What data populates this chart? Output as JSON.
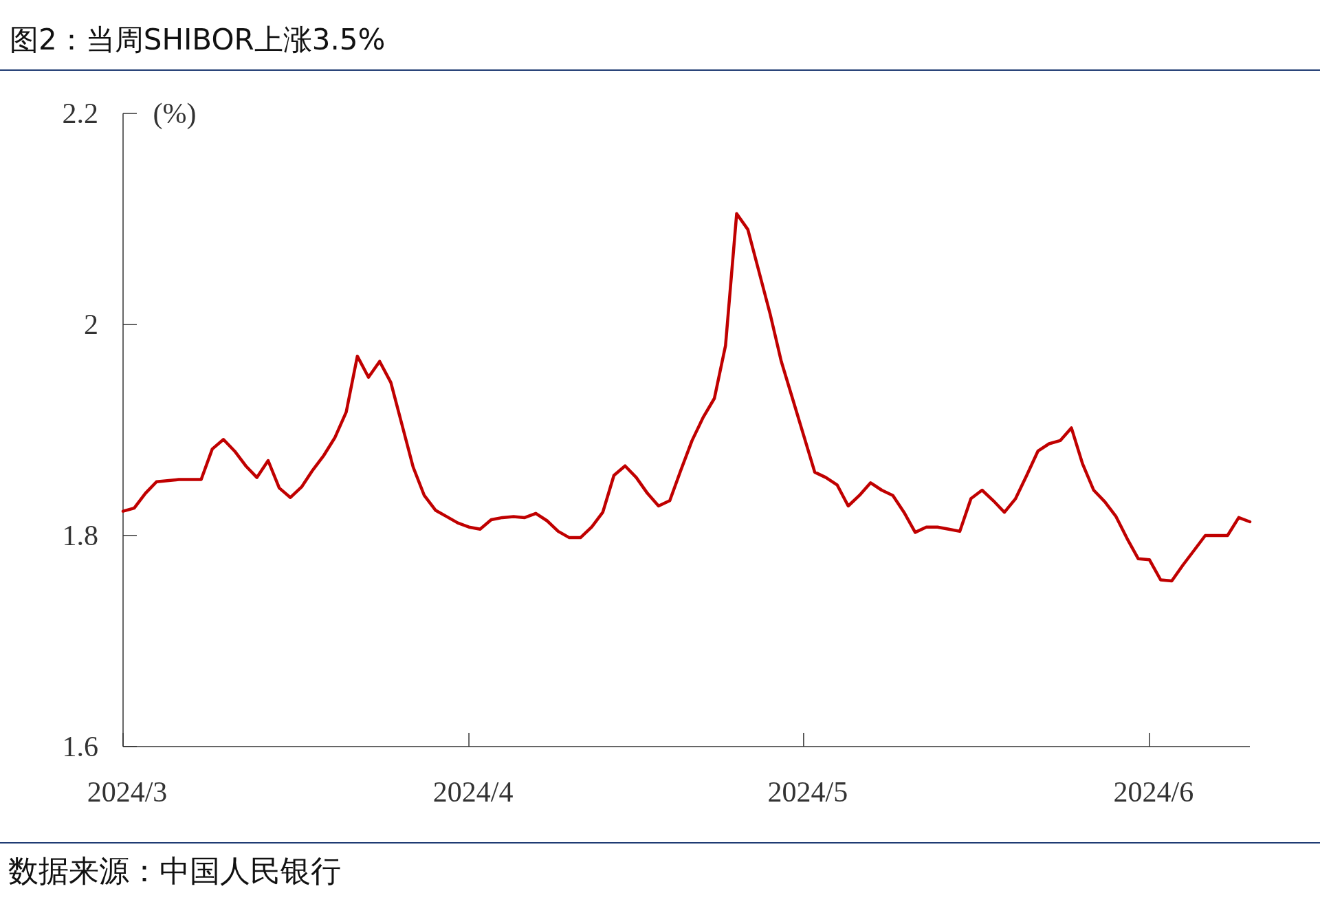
{
  "chart_data": {
    "type": "line",
    "title": "图2：当周SHIBOR上涨3.5%",
    "ylabel": "(%)",
    "annotations": [
      "数据来源：中国人民银行"
    ],
    "x": [
      "2024-03-01",
      "2024-03-02",
      "2024-03-03",
      "2024-03-04",
      "2024-03-06",
      "2024-03-07",
      "2024-03-08",
      "2024-03-09",
      "2024-03-10",
      "2024-03-11",
      "2024-03-12",
      "2024-03-13",
      "2024-03-14",
      "2024-03-15",
      "2024-03-16",
      "2024-03-17",
      "2024-03-18",
      "2024-03-19",
      "2024-03-20",
      "2024-03-21",
      "2024-03-22",
      "2024-03-23",
      "2024-03-24",
      "2024-03-25",
      "2024-03-26",
      "2024-03-27",
      "2024-03-28",
      "2024-03-29",
      "2024-03-30",
      "2024-03-31",
      "2024-04-01",
      "2024-04-02",
      "2024-04-03",
      "2024-04-04",
      "2024-04-05",
      "2024-04-06",
      "2024-04-07",
      "2024-04-08",
      "2024-04-09",
      "2024-04-10",
      "2024-04-11",
      "2024-04-12",
      "2024-04-13",
      "2024-04-14",
      "2024-04-15",
      "2024-04-16",
      "2024-04-17",
      "2024-04-18",
      "2024-04-19",
      "2024-04-20",
      "2024-04-21",
      "2024-04-22",
      "2024-04-23",
      "2024-04-24",
      "2024-04-25",
      "2024-04-26",
      "2024-04-27",
      "2024-04-28",
      "2024-04-29",
      "2024-04-30",
      "2024-05-01",
      "2024-05-02",
      "2024-05-03",
      "2024-05-04",
      "2024-05-05",
      "2024-05-06",
      "2024-05-07",
      "2024-05-08",
      "2024-05-09",
      "2024-05-10",
      "2024-05-11",
      "2024-05-12",
      "2024-05-13",
      "2024-05-14",
      "2024-05-15",
      "2024-05-16",
      "2024-05-17",
      "2024-05-18",
      "2024-05-19",
      "2024-05-20",
      "2024-05-21",
      "2024-05-22",
      "2024-05-23",
      "2024-05-24",
      "2024-05-25",
      "2024-05-26",
      "2024-05-27",
      "2024-05-28",
      "2024-05-29",
      "2024-05-30",
      "2024-05-31",
      "2024-06-01",
      "2024-06-02",
      "2024-06-03",
      "2024-06-04",
      "2024-06-05",
      "2024-06-06",
      "2024-06-07",
      "2024-06-08",
      "2024-06-09",
      "2024-06-10"
    ],
    "series": [
      {
        "color": "#c00000",
        "values": [
          1.823,
          1.826,
          1.84,
          1.851,
          1.853,
          1.853,
          1.853,
          1.882,
          1.891,
          1.88,
          1.866,
          1.855,
          1.871,
          1.845,
          1.836,
          1.846,
          1.862,
          1.876,
          1.893,
          1.917,
          1.97,
          1.95,
          1.965,
          1.945,
          1.905,
          1.865,
          1.838,
          1.824,
          1.818,
          1.812,
          1.808,
          1.806,
          1.815,
          1.817,
          1.818,
          1.817,
          1.821,
          1.814,
          1.804,
          1.798,
          1.798,
          1.808,
          1.822,
          1.857,
          1.866,
          1.855,
          1.84,
          1.828,
          1.833,
          1.862,
          1.89,
          1.912,
          1.93,
          1.98,
          2.105,
          2.09,
          2.05,
          2.01,
          1.965,
          1.93,
          1.895,
          1.86,
          1.855,
          1.848,
          1.828,
          1.838,
          1.85,
          1.843,
          1.838,
          1.822,
          1.803,
          1.808,
          1.808,
          1.806,
          1.804,
          1.835,
          1.843,
          1.833,
          1.822,
          1.835,
          1.857,
          1.88,
          1.887,
          1.89,
          1.902,
          1.868,
          1.843,
          1.832,
          1.818,
          1.797,
          1.778,
          1.777,
          1.758,
          1.757,
          1.772,
          1.786,
          1.8,
          1.8,
          1.8,
          1.817,
          1.813
        ]
      }
    ],
    "xlim": [
      "2024-03-01",
      "2024-06-10"
    ],
    "xticks": [
      {
        "value": "2024-03-01",
        "label": "2024/3"
      },
      {
        "value": "2024-04-01",
        "label": "2024/4"
      },
      {
        "value": "2024-05-01",
        "label": "2024/5"
      },
      {
        "value": "2024-06-01",
        "label": "2024/6"
      }
    ],
    "ylim": [
      1.6,
      2.2
    ],
    "yticks": [
      1.6,
      1.8,
      2,
      2.2
    ]
  }
}
